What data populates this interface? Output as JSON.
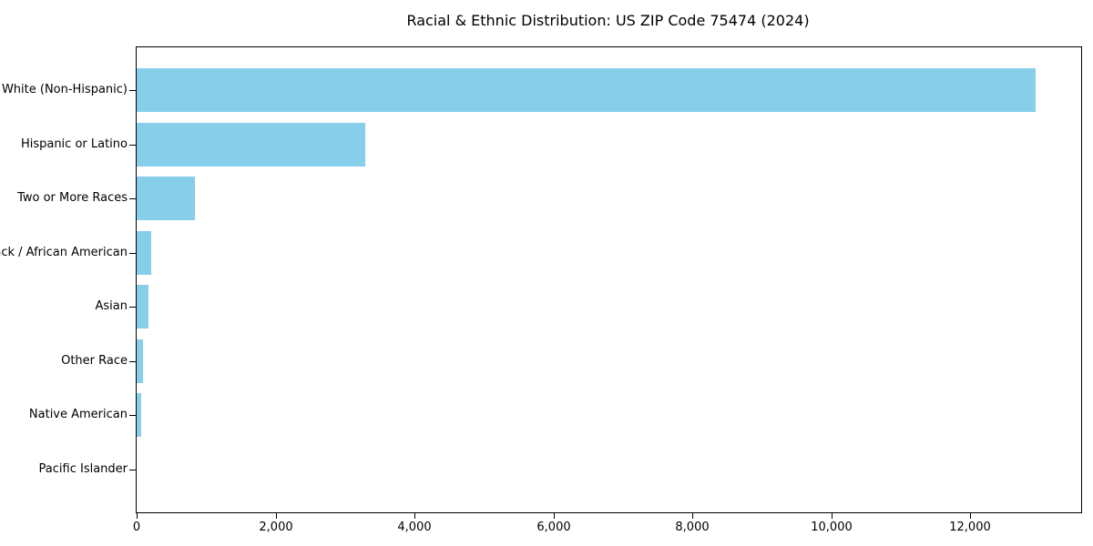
{
  "figure": {
    "title": "Racial & Ethnic Distribution: US ZIP Code 75474 (2024)"
  },
  "chart_data": {
    "type": "bar",
    "orientation": "horizontal",
    "title": "Racial & Ethnic Distribution: US ZIP Code 75474 (2024)",
    "categories": [
      "White (Non-Hispanic)",
      "Hispanic or Latino",
      "Two or More Races",
      "Black / African American",
      "Asian",
      "Other Race",
      "Native American",
      "Pacific Islander"
    ],
    "values": [
      12940,
      3290,
      840,
      205,
      170,
      95,
      60,
      0
    ],
    "xlabel": "",
    "ylabel": "",
    "xlim": [
      0,
      13600
    ],
    "xticks": [
      0,
      2000,
      4000,
      6000,
      8000,
      10000,
      12000
    ],
    "xtick_labels": [
      "0",
      "2,000",
      "4,000",
      "6,000",
      "8,000",
      "10,000",
      "12,000"
    ],
    "bar_color": "#87CEEB",
    "grid": false,
    "legend_position": "none"
  }
}
